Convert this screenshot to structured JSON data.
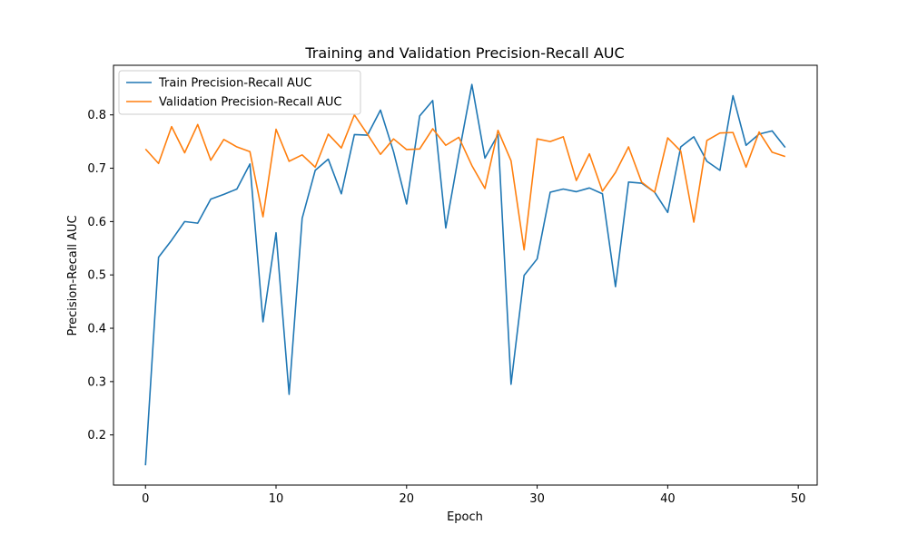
{
  "chart_data": {
    "type": "line",
    "title": "Training and Validation Precision-Recall AUC",
    "xlabel": "Epoch",
    "ylabel": "Precision-Recall AUC",
    "xlim": [
      -2.45,
      51.45
    ],
    "ylim": [
      0.106,
      0.893
    ],
    "xticks": [
      0,
      10,
      20,
      30,
      40,
      50
    ],
    "yticks": [
      0.2,
      0.3,
      0.4,
      0.5,
      0.6,
      0.7,
      0.8
    ],
    "grid": false,
    "legend_position": "upper-left",
    "x": [
      0,
      1,
      2,
      3,
      4,
      5,
      6,
      7,
      8,
      9,
      10,
      11,
      12,
      13,
      14,
      15,
      16,
      17,
      18,
      19,
      20,
      21,
      22,
      23,
      24,
      25,
      26,
      27,
      28,
      29,
      30,
      31,
      32,
      33,
      34,
      35,
      36,
      37,
      38,
      39,
      40,
      41,
      42,
      43,
      44,
      45,
      46,
      47,
      48,
      49
    ],
    "series": [
      {
        "name": "Train Precision-Recall AUC",
        "color": "#1f77b4",
        "values": [
          0.143,
          0.533,
          0.565,
          0.6,
          0.597,
          0.642,
          0.651,
          0.661,
          0.708,
          0.412,
          0.579,
          0.276,
          0.606,
          0.696,
          0.717,
          0.652,
          0.763,
          0.762,
          0.809,
          0.731,
          0.633,
          0.798,
          0.827,
          0.588,
          0.726,
          0.857,
          0.719,
          0.763,
          0.295,
          0.499,
          0.53,
          0.655,
          0.661,
          0.656,
          0.663,
          0.652,
          0.478,
          0.674,
          0.672,
          0.655,
          0.617,
          0.74,
          0.759,
          0.713,
          0.696,
          0.836,
          0.743,
          0.764,
          0.77,
          0.739
        ]
      },
      {
        "name": "Validation Precision-Recall AUC",
        "color": "#ff7f0e",
        "values": [
          0.736,
          0.709,
          0.778,
          0.729,
          0.782,
          0.715,
          0.754,
          0.74,
          0.731,
          0.609,
          0.773,
          0.713,
          0.725,
          0.702,
          0.764,
          0.738,
          0.8,
          0.764,
          0.726,
          0.755,
          0.735,
          0.736,
          0.774,
          0.743,
          0.758,
          0.705,
          0.662,
          0.771,
          0.714,
          0.547,
          0.755,
          0.75,
          0.759,
          0.677,
          0.727,
          0.657,
          0.692,
          0.74,
          0.674,
          0.655,
          0.757,
          0.732,
          0.599,
          0.752,
          0.766,
          0.767,
          0.702,
          0.768,
          0.73,
          0.722
        ]
      }
    ]
  }
}
